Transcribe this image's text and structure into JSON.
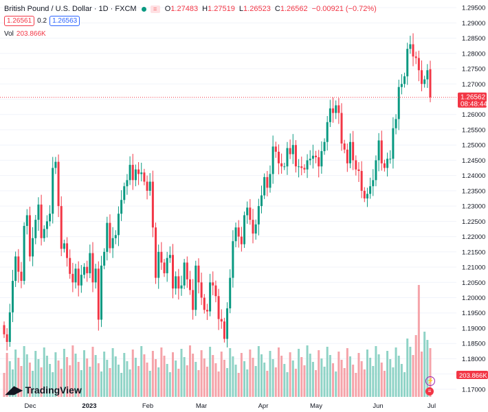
{
  "legend": {
    "symbol": "British Pound / U.S. Dollar · 1D · FXCM",
    "o_label": "O",
    "o": "1.27483",
    "h_label": "H",
    "h": "1.27519",
    "l_label": "L",
    "l": "1.26523",
    "c_label": "C",
    "c": "1.26562",
    "change": "−0.00921 (−0.72%)",
    "bid": "1.26561",
    "spread": "0.2",
    "ask": "1.26563",
    "vol_label": "Vol",
    "vol_value": "203.866K"
  },
  "price_tag": {
    "price": "1.26562",
    "countdown": "08:48:44"
  },
  "vol_tag": "203.866K",
  "brand": "TradingView",
  "colors": {
    "up": "#089981",
    "down": "#f23645",
    "up_vol": "#8fd3c6",
    "down_vol": "#f5a3a9",
    "grid": "#f0f3fa",
    "text": "#131722"
  },
  "chart_data": {
    "type": "candlestick",
    "symbol": "GBPUSD",
    "timeframe": "1D",
    "y_axis": {
      "ticks": [
        "1.29500",
        "1.29000",
        "1.28500",
        "1.28000",
        "1.27500",
        "1.27000",
        "1.26500",
        "1.26000",
        "1.25500",
        "1.25000",
        "1.24500",
        "1.24000",
        "1.23500",
        "1.23000",
        "1.22500",
        "1.22000",
        "1.21500",
        "1.21000",
        "1.20500",
        "1.20000",
        "1.19500",
        "1.19000",
        "1.18500",
        "1.18000",
        "1.17500",
        "1.17000"
      ],
      "range": [
        1.1675,
        1.2975
      ]
    },
    "x_axis": {
      "ticks": [
        "Dec",
        "2023",
        "Feb",
        "Mar",
        "Apr",
        "May",
        "Jun",
        "Jul"
      ]
    },
    "grid": true,
    "last_price": 1.26562,
    "series": [
      {
        "name": "price",
        "ohlc_closes": [
          1.188,
          1.1855,
          1.1952,
          1.2055,
          1.2135,
          1.2085,
          1.2055,
          1.2235,
          1.227,
          1.2135,
          1.2195,
          1.2255,
          1.2305,
          1.2195,
          1.2225,
          1.225,
          1.2275,
          1.2425,
          1.2445,
          1.23,
          1.216,
          1.2178,
          1.213,
          1.2078,
          1.205,
          1.2095,
          1.204,
          1.2075,
          1.2101,
          1.208,
          1.2146,
          1.205,
          1.2095,
          1.1928,
          1.2105,
          1.215,
          1.2245,
          1.2162,
          1.2195,
          1.2205,
          1.2275,
          1.232,
          1.2365,
          1.2385,
          1.2435,
          1.2385,
          1.242,
          1.2405,
          1.241,
          1.238,
          1.235,
          1.238,
          1.223,
          1.2065,
          1.215,
          1.2115,
          1.208,
          1.213,
          1.214,
          1.203,
          1.207,
          1.203,
          1.204,
          1.2115,
          1.206,
          1.2025,
          1.196,
          1.2105,
          1.205,
          1.2,
          1.196,
          1.1955,
          1.205,
          1.204,
          1.2005,
          1.193,
          1.1922,
          1.1865,
          1.1965,
          1.2065,
          1.2185,
          1.223,
          1.22,
          1.2175,
          1.227,
          1.2295,
          1.2255,
          1.221,
          1.224,
          1.23,
          1.2335,
          1.2395,
          1.236,
          1.2405,
          1.2495,
          1.2478,
          1.244,
          1.243,
          1.243,
          1.249,
          1.247,
          1.25,
          1.243,
          1.243,
          1.2425,
          1.242,
          1.245,
          1.2455,
          1.2465,
          1.246,
          1.243,
          1.248,
          1.251,
          1.2575,
          1.262,
          1.2605,
          1.263,
          1.2605,
          1.2505,
          1.2485,
          1.244,
          1.251,
          1.245,
          1.242,
          1.2415,
          1.235,
          1.2325,
          1.234,
          1.2365,
          1.2385,
          1.245,
          1.2515,
          1.244,
          1.2425,
          1.2455,
          1.2455,
          1.2555,
          1.2585,
          1.269,
          1.27,
          1.2725,
          1.2815,
          1.283,
          1.279,
          1.2785,
          1.2745,
          1.27,
          1.2715,
          1.2745,
          1.26562
        ]
      },
      {
        "name": "volume",
        "last": "203.866K"
      }
    ]
  }
}
